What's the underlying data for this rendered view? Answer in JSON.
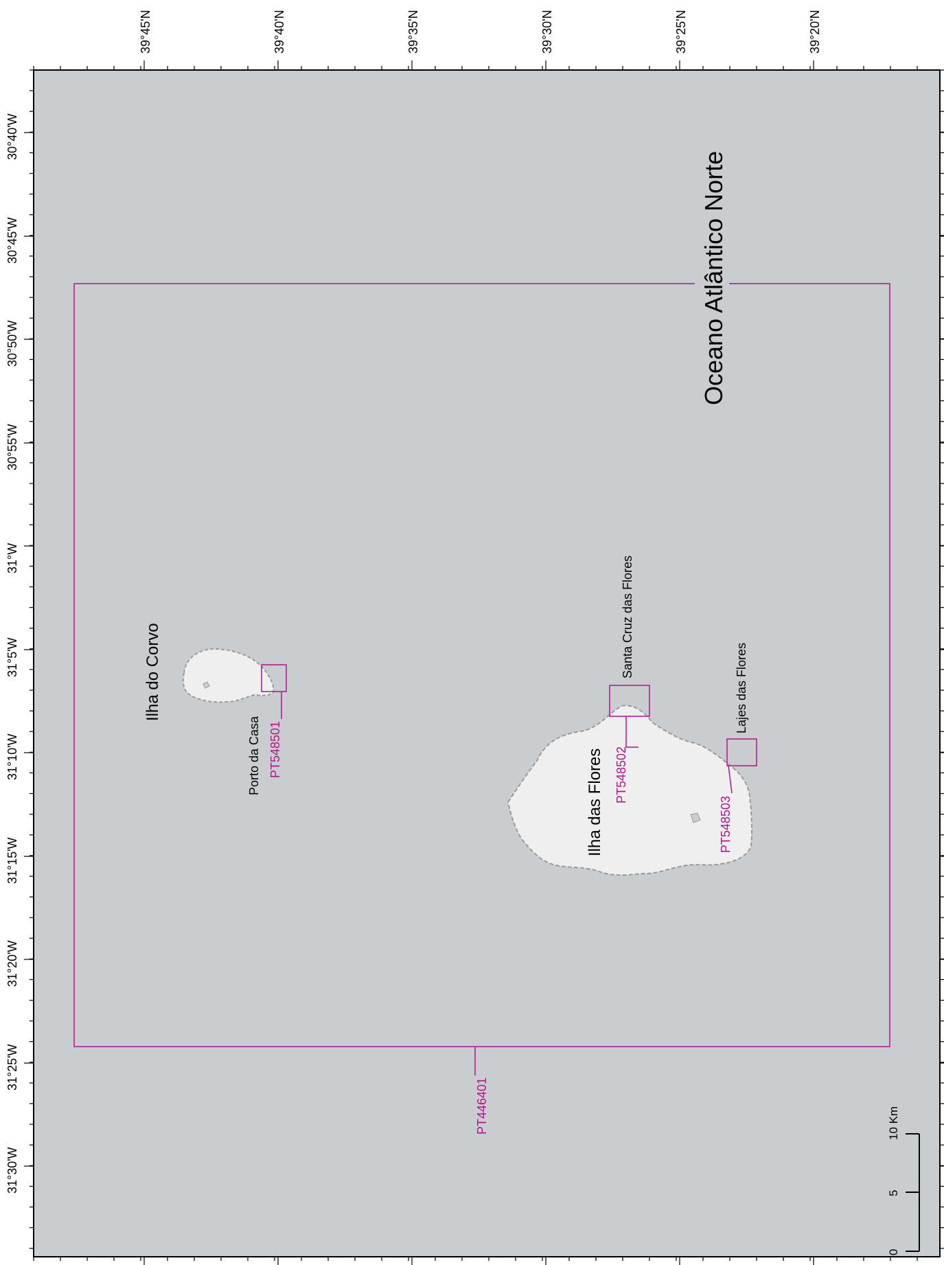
{
  "graticule": {
    "top_labels": [
      "39°45'N",
      "39°40'N",
      "39°35'N",
      "39°30'N",
      "39°25'N",
      "39°20'N"
    ],
    "left_labels": [
      "30°40'W",
      "30°45'W",
      "30°50'W",
      "30°55'W",
      "31°W",
      "31°5'W",
      "31°10'W",
      "31°15'W",
      "31°20'W",
      "31°25'W",
      "31°30'W"
    ]
  },
  "labels": {
    "ocean": "Oceano Atlântico Norte",
    "corvo": "Ilha do Corvo",
    "flores": "Ilha das Flores",
    "porto_da_casa": "Porto da Casa",
    "santa_cruz": "Santa Cruz das Flores",
    "lajes": "Lajes das Flores"
  },
  "codes": {
    "pt548501": "PT548501",
    "pt548502": "PT548502",
    "pt548503": "PT548503",
    "pt446401": "PT446401"
  },
  "scale_bar": {
    "ticks": [
      "0",
      "5",
      "10 Km"
    ]
  },
  "colors": {
    "sea": "#c9cdcf",
    "land": "#efefef",
    "outline": "#9a9a9a",
    "zone": "#b0148c",
    "text": "#000000"
  }
}
